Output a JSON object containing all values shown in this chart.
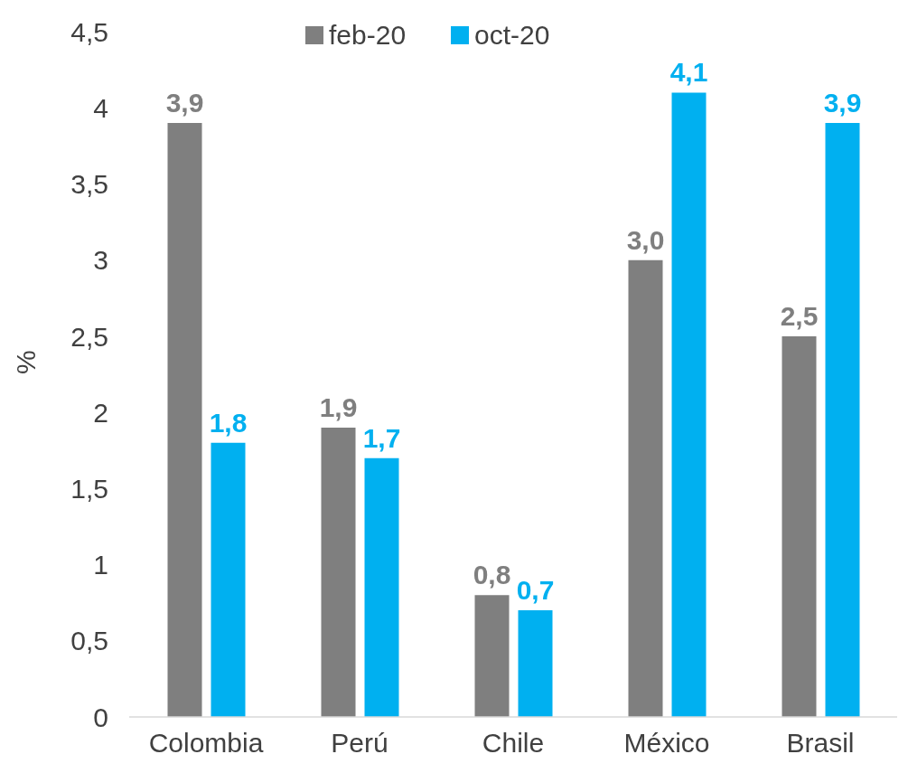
{
  "chart_data": {
    "type": "bar",
    "ylabel": "%",
    "categories": [
      "Colombia",
      "Perú",
      "Chile",
      "México",
      "Brasil"
    ],
    "series": [
      {
        "name": "feb-20",
        "color": "#7f7f7f",
        "values": [
          3.9,
          1.9,
          0.8,
          3.0,
          2.5
        ],
        "value_labels": [
          "3,9",
          "1,9",
          "0,8",
          "3,0",
          "2,5"
        ]
      },
      {
        "name": "oct-20",
        "color": "#00b0f0",
        "values": [
          1.8,
          1.7,
          0.7,
          4.1,
          3.9
        ],
        "value_labels": [
          "1,8",
          "1,7",
          "0,7",
          "4,1",
          "3,9"
        ]
      }
    ],
    "ylim": [
      0,
      4.5
    ],
    "yticks": [
      0,
      {
        "value": 0.5,
        "label": "0,5"
      },
      1,
      {
        "value": 1.5,
        "label": "1,5"
      },
      2,
      {
        "value": 2.5,
        "label": "2,5"
      },
      3,
      {
        "value": 3.5,
        "label": "3,5"
      },
      4,
      {
        "value": 4.5,
        "label": "4,5"
      }
    ],
    "grid": false,
    "legend": "top"
  }
}
